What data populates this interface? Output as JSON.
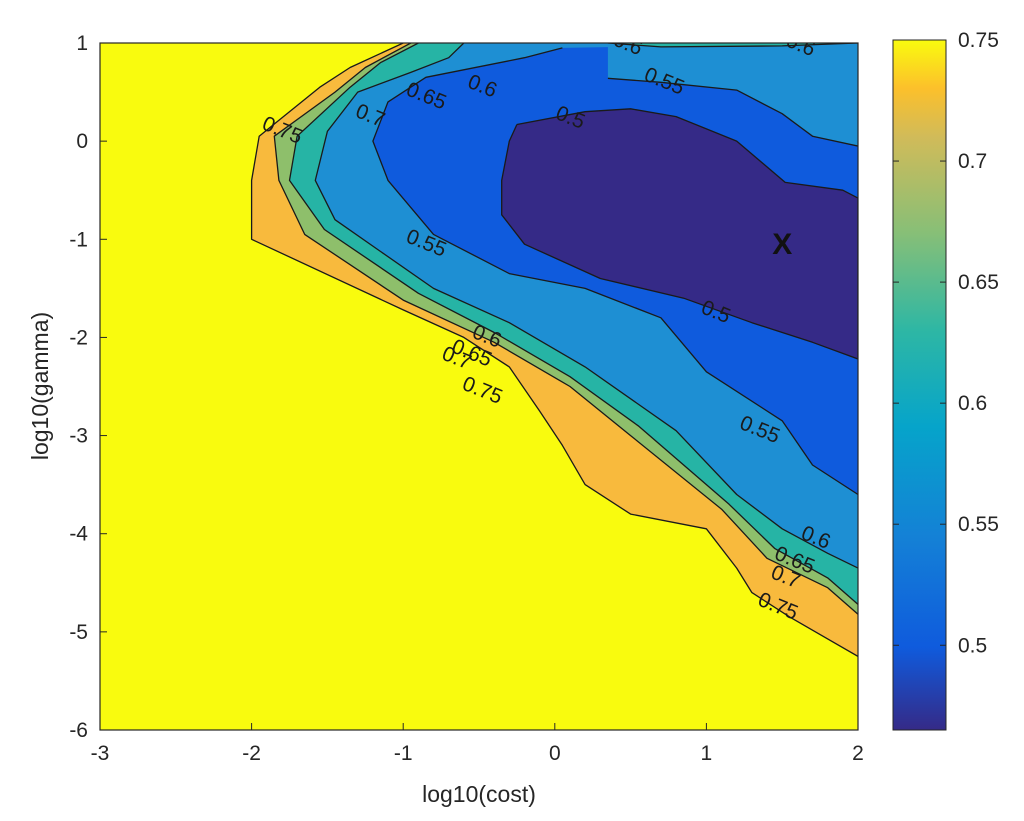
{
  "chart_data": {
    "type": "contour",
    "title": "",
    "xlabel": "log10(cost)",
    "ylabel": "log10(gamma)",
    "xlim": [
      -3,
      2
    ],
    "ylim": [
      -6,
      1
    ],
    "xticks": [
      -3,
      -2,
      -1,
      0,
      1,
      2
    ],
    "xtick_labels": [
      "-3",
      "-2",
      "-1",
      "0",
      "1",
      "2"
    ],
    "yticks": [
      1,
      0,
      -1,
      -2,
      -3,
      -4,
      -5,
      -6
    ],
    "ytick_labels": [
      "1",
      "0",
      "-1",
      "-2",
      "-3",
      "-4",
      "-5",
      "-6"
    ],
    "colorbar": {
      "colormap": "parula",
      "range": [
        0.465,
        0.75
      ],
      "ticks": [
        0.75,
        0.7,
        0.65,
        0.6,
        0.55,
        0.5
      ],
      "tick_labels": [
        "0.75",
        "0.7",
        "0.65",
        "0.6",
        "0.55",
        "0.5"
      ]
    },
    "levels": [
      0.5,
      0.55,
      0.6,
      0.65,
      0.7,
      0.75
    ],
    "level_colors": {
      "below_0.5": "#352a87",
      "0.5-0.55": "#0f5bdd",
      "0.55-0.6": "#1e8fd3",
      "0.6-0.65": "#26b4a5",
      "0.65-0.7": "#8ebf6b",
      "0.7-0.75": "#f8ba3d",
      "above_0.75": "#f9fb0e"
    },
    "contours": [
      {
        "level": 0.75,
        "label": "0.75",
        "points": [
          [
            -1.0,
            1.0
          ],
          [
            -1.35,
            0.75
          ],
          [
            -1.55,
            0.55
          ],
          [
            -1.95,
            0.05
          ],
          [
            -2.0,
            -0.4
          ],
          [
            -2.0,
            -1.0
          ],
          [
            -1.0,
            -1.72
          ],
          [
            -0.6,
            -2.0
          ],
          [
            -0.3,
            -2.3
          ],
          [
            -0.1,
            -2.75
          ],
          [
            0.05,
            -3.1
          ],
          [
            0.2,
            -3.5
          ],
          [
            0.5,
            -3.8
          ],
          [
            1.0,
            -3.95
          ],
          [
            1.2,
            -4.35
          ],
          [
            1.3,
            -4.6
          ],
          [
            1.55,
            -4.85
          ],
          [
            2.0,
            -5.25
          ]
        ]
      },
      {
        "level": 0.7,
        "label": "0.7",
        "points": [
          [
            -0.95,
            1.0
          ],
          [
            -1.25,
            0.75
          ],
          [
            -1.45,
            0.5
          ],
          [
            -1.85,
            0.05
          ],
          [
            -1.82,
            -0.4
          ],
          [
            -1.65,
            -0.95
          ],
          [
            -1.0,
            -1.62
          ],
          [
            -0.4,
            -2.05
          ],
          [
            0.1,
            -2.5
          ],
          [
            0.5,
            -3.0
          ],
          [
            1.1,
            -3.75
          ],
          [
            1.4,
            -4.25
          ],
          [
            1.8,
            -4.55
          ],
          [
            2.0,
            -4.82
          ]
        ]
      },
      {
        "level": 0.65,
        "label": "0.65",
        "points": [
          [
            -0.9,
            1.0
          ],
          [
            -1.15,
            0.8
          ],
          [
            -1.35,
            0.55
          ],
          [
            -1.7,
            0.05
          ],
          [
            -1.75,
            -0.4
          ],
          [
            -1.52,
            -0.9
          ],
          [
            -0.9,
            -1.55
          ],
          [
            -0.4,
            -1.95
          ],
          [
            0.1,
            -2.4
          ],
          [
            0.55,
            -2.9
          ],
          [
            1.15,
            -3.7
          ],
          [
            1.45,
            -4.15
          ],
          [
            1.8,
            -4.45
          ],
          [
            2.0,
            -4.72
          ]
        ]
      },
      {
        "level": 0.6,
        "label": "0.6",
        "points": [
          [
            -0.6,
            1.0
          ],
          [
            -0.7,
            0.85
          ],
          [
            -0.95,
            0.7
          ],
          [
            -1.3,
            0.5
          ],
          [
            -1.5,
            0.1
          ],
          [
            -1.58,
            -0.4
          ],
          [
            -1.45,
            -0.8
          ],
          [
            -0.8,
            -1.5
          ],
          [
            -0.3,
            -1.85
          ],
          [
            0.2,
            -2.3
          ],
          [
            0.8,
            -2.95
          ],
          [
            1.2,
            -3.6
          ],
          [
            1.5,
            -3.95
          ],
          [
            1.8,
            -4.2
          ],
          [
            2.0,
            -4.35
          ]
        ]
      },
      {
        "level": 0.6,
        "label": "0.6",
        "points": [
          [
            0.35,
            1.0
          ],
          [
            0.7,
            0.96
          ],
          [
            1.5,
            0.97
          ],
          [
            2.0,
            1.0
          ]
        ]
      },
      {
        "level": 0.55,
        "label": "0.55",
        "points": [
          [
            0.05,
            0.95
          ],
          [
            -0.2,
            0.85
          ],
          [
            -0.85,
            0.65
          ],
          [
            -1.1,
            0.4
          ],
          [
            -1.2,
            0.0
          ],
          [
            -1.1,
            -0.4
          ],
          [
            -0.8,
            -0.95
          ],
          [
            -0.3,
            -1.35
          ],
          [
            0.2,
            -1.5
          ],
          [
            0.7,
            -1.8
          ],
          [
            1.0,
            -2.35
          ],
          [
            1.5,
            -2.85
          ],
          [
            1.7,
            -3.3
          ],
          [
            2.0,
            -3.6
          ]
        ]
      },
      {
        "level": 0.55,
        "label": "0.55",
        "points": [
          [
            0.35,
            0.64
          ],
          [
            0.7,
            0.6
          ],
          [
            1.2,
            0.52
          ],
          [
            1.5,
            0.28
          ],
          [
            1.7,
            0.05
          ],
          [
            2.0,
            -0.05
          ]
        ]
      },
      {
        "level": 0.5,
        "label": "0.5",
        "points": [
          [
            -0.25,
            0.17
          ],
          [
            0.2,
            0.3
          ],
          [
            0.5,
            0.33
          ],
          [
            0.8,
            0.25
          ],
          [
            1.2,
            0.0
          ],
          [
            1.52,
            -0.42
          ],
          [
            1.9,
            -0.5
          ],
          [
            2.0,
            -0.58
          ],
          [
            2.0,
            -2.22
          ],
          [
            1.7,
            -2.05
          ],
          [
            1.3,
            -1.85
          ],
          [
            0.85,
            -1.6
          ],
          [
            0.3,
            -1.4
          ],
          [
            -0.2,
            -1.05
          ],
          [
            -0.35,
            -0.75
          ],
          [
            -0.35,
            -0.4
          ],
          [
            -0.3,
            0.0
          ],
          [
            -0.25,
            0.17
          ]
        ]
      }
    ],
    "contour_labels": [
      {
        "text": "0.6",
        "x": 0.48,
        "y": 0.98
      },
      {
        "text": "0.6",
        "x": 1.62,
        "y": 0.97
      },
      {
        "text": "0.55",
        "x": 0.72,
        "y": 0.6
      },
      {
        "text": "0.6",
        "x": -0.48,
        "y": 0.55
      },
      {
        "text": "0.65",
        "x": -0.85,
        "y": 0.45
      },
      {
        "text": "0.7",
        "x": -1.22,
        "y": 0.25
      },
      {
        "text": "0.75",
        "x": -1.8,
        "y": 0.1
      },
      {
        "text": "0.5",
        "x": 0.1,
        "y": 0.23
      },
      {
        "text": "0.55",
        "x": -0.85,
        "y": -1.05
      },
      {
        "text": "0.5",
        "x": 1.06,
        "y": -1.75
      },
      {
        "text": "0.6",
        "x": -0.45,
        "y": -2.0
      },
      {
        "text": "0.65",
        "x": -0.55,
        "y": -2.17
      },
      {
        "text": "0.7",
        "x": -0.65,
        "y": -2.22
      },
      {
        "text": "0.75",
        "x": -0.48,
        "y": -2.55
      },
      {
        "text": "0.55",
        "x": 1.35,
        "y": -2.95
      },
      {
        "text": "0.6",
        "x": 1.72,
        "y": -4.05
      },
      {
        "text": "0.65",
        "x": 1.58,
        "y": -4.28
      },
      {
        "text": "0.7",
        "x": 1.52,
        "y": -4.45
      },
      {
        "text": "0.75",
        "x": 1.47,
        "y": -4.75
      }
    ],
    "marker": {
      "label": "X",
      "x": 1.5,
      "y": -1.05
    }
  }
}
